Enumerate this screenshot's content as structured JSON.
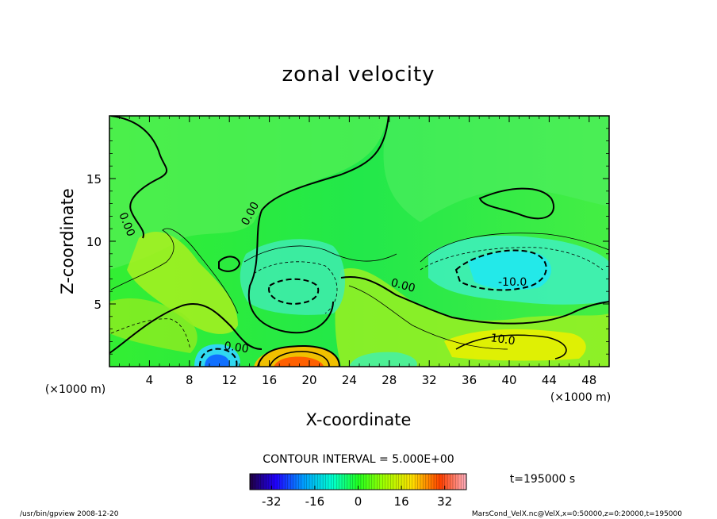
{
  "chart_data": {
    "type": "heatmap",
    "title": "zonal velocity",
    "xlabel": "X-coordinate",
    "ylabel": "Z-coordinate",
    "x_unit": "(×1000 m)",
    "z_unit": "(×1000 m)",
    "xlim": [
      0,
      50
    ],
    "ylim": [
      0,
      20
    ],
    "x_ticks": [
      "4",
      "8",
      "12",
      "16",
      "20",
      "24",
      "28",
      "32",
      "36",
      "40",
      "44",
      "48"
    ],
    "y_ticks": [
      "5",
      "10",
      "15"
    ],
    "contour_interval_label": "CONTOUR INTERVAL = 5.000E+00",
    "contour_labels": [
      "0.00",
      "0.00",
      "0.00",
      "-10.0",
      "10.0",
      "0.00"
    ],
    "colorbar_ticks": [
      "-32",
      "-16",
      "0",
      "16",
      "32"
    ],
    "colorbar_range": [
      -40,
      40
    ],
    "time_label": "t=195000 s",
    "footer_left": "/usr/bin/gpview  2008-12-20",
    "footer_right": "MarsCond_VelX.nc@VelX,x=0:50000,z=0:20000,t=195000",
    "colors": {
      "zero": "#00ff00",
      "positive": "#ff0000",
      "negative": "#0000ff"
    }
  }
}
